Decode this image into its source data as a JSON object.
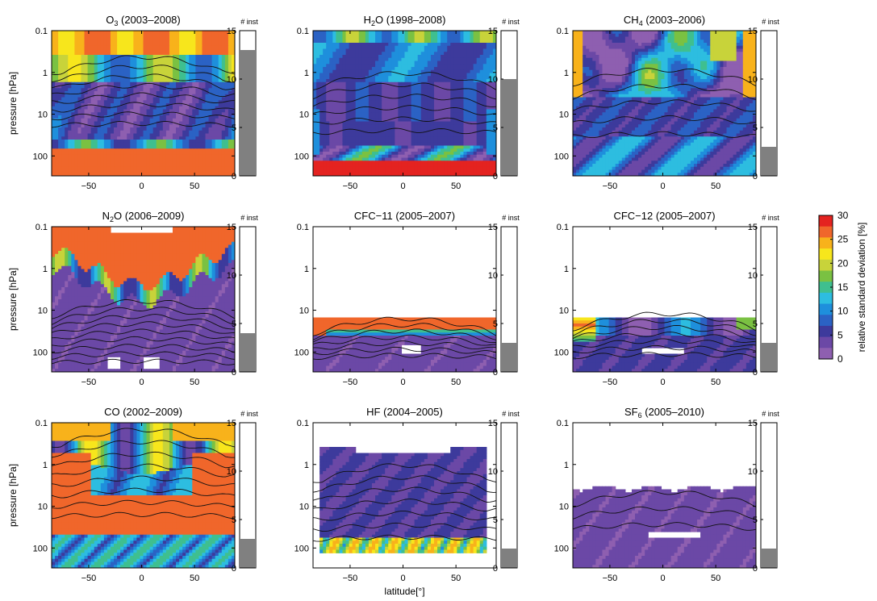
{
  "chart_data": {
    "type": "heatmap",
    "description": "Contour maps of relative standard deviation across instruments, latitude vs pressure, with bar of number of instruments",
    "xlabel": "latitude[°]",
    "ylabel": "pressure [hPa]",
    "x_ticks": [
      "−50",
      "0",
      "50"
    ],
    "x_tick_values": [
      -50,
      0,
      50
    ],
    "xlim": [
      -85,
      88
    ],
    "y_ticks": [
      "0.1",
      "1",
      "10",
      "100"
    ],
    "y_tick_values": [
      0.1,
      1,
      10,
      100
    ],
    "ylim": [
      0.1,
      300
    ],
    "y_scale": "log",
    "inst_label": "# inst",
    "inst_ticks": [
      "0",
      "5",
      "10",
      "15"
    ],
    "inst_tick_values": [
      0,
      5,
      10,
      15
    ],
    "inst_lim": [
      0,
      15
    ],
    "colorbar": {
      "label": "relative standard deviation [%]",
      "ticks": [
        "0",
        "5",
        "10",
        "15",
        "20",
        "25",
        "30"
      ],
      "tick_values": [
        0,
        5,
        10,
        15,
        20,
        25,
        30
      ],
      "levels": [
        0,
        2.5,
        5,
        7.5,
        10,
        12.5,
        15,
        17.5,
        20,
        22.5,
        25,
        27.5,
        30
      ],
      "colors": [
        "#8e5fb0",
        "#6b48a6",
        "#3d3a9c",
        "#2b62c4",
        "#1e8fdc",
        "#2dbde0",
        "#3fbf8f",
        "#7ac142",
        "#c8d33a",
        "#f7e61c",
        "#f8b21b",
        "#f0662b",
        "#e42320"
      ]
    },
    "panels": [
      {
        "species": "O",
        "sub": "3",
        "years": "(2003–2008)",
        "n_inst": 13
      },
      {
        "species": "H",
        "sub": "2",
        "species2": "O",
        "years": "(1998–2008)",
        "n_inst": 10
      },
      {
        "species": "CH",
        "sub": "4",
        "years": "(2003–2006)",
        "n_inst": 3
      },
      {
        "species": "N",
        "sub": "2",
        "species2": "O",
        "years": "(2006–2009)",
        "n_inst": 4
      },
      {
        "species": "CFC−11",
        "years": "(2005–2007)",
        "n_inst": 3
      },
      {
        "species": "CFC−12",
        "years": "(2005–2007)",
        "n_inst": 3
      },
      {
        "species": "CO",
        "years": "(2002–2009)",
        "n_inst": 3
      },
      {
        "species": "HF",
        "years": "(2004–2005)",
        "n_inst": 2
      },
      {
        "species": "SF",
        "sub": "6",
        "years": "(2005–2010)",
        "n_inst": 2
      }
    ]
  }
}
